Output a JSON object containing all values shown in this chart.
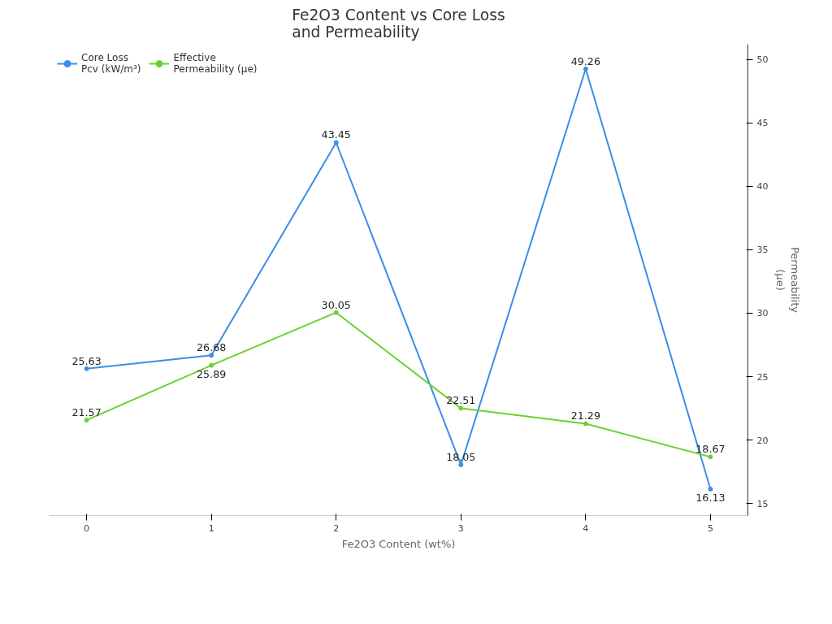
{
  "chart_data": {
    "type": "line",
    "title": "Fe2O3 Content vs Core Loss\nand Permeability",
    "xlabel": "Fe2O3 Content (wt%)",
    "ylabel": "Permeability\n(μe)",
    "x": [
      0,
      1,
      2,
      3,
      4,
      5
    ],
    "series": [
      {
        "name": "Core Loss\nPcv (kW/m³)",
        "color": "#3a8ee6",
        "values": [
          25.63,
          26.68,
          43.45,
          18.05,
          49.26,
          16.13
        ]
      },
      {
        "name": "Effective\nPermeability (μe)",
        "color": "#6ad130",
        "values": [
          21.57,
          25.89,
          30.05,
          22.51,
          21.29,
          18.67
        ]
      }
    ],
    "xlim": [
      -0.3,
      5.3
    ],
    "xticks": [
      0,
      1,
      2,
      3,
      4,
      5
    ],
    "ylim": [
      14.05,
      51.2
    ],
    "yticks": [
      15,
      20,
      25,
      30,
      35,
      40,
      45,
      50
    ],
    "data_labels": true,
    "marker": "circle",
    "line_style": "solid",
    "grid": false,
    "legend": "top left"
  }
}
